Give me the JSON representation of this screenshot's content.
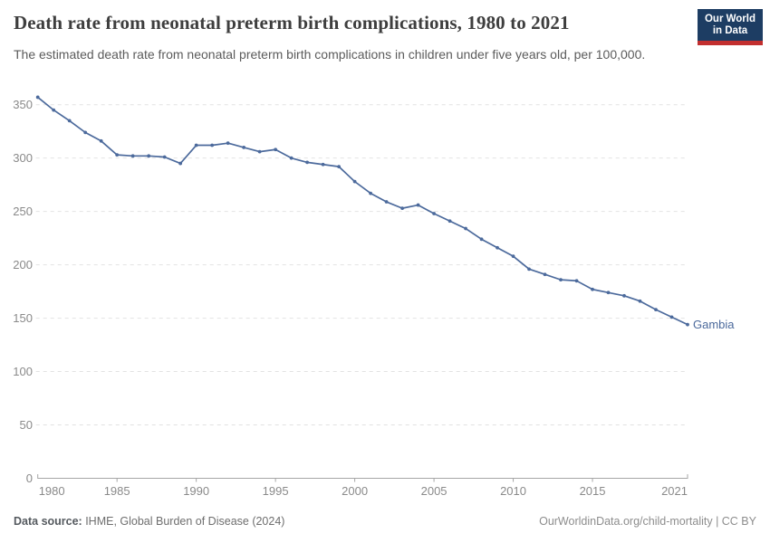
{
  "header": {
    "title": "Death rate from neonatal preterm birth complications, 1980 to 2021",
    "subtitle": "The estimated death rate from neonatal preterm birth complications in children under five years old, per 100,000.",
    "logo": {
      "line1": "Our World",
      "line2": "in Data"
    }
  },
  "chart_data": {
    "type": "line",
    "title": "Death rate from neonatal preterm birth complications, 1980 to 2021",
    "xlabel": "",
    "ylabel": "",
    "x_ticks": [
      1980,
      1985,
      1990,
      1995,
      2000,
      2005,
      2010,
      2015,
      2021
    ],
    "y_ticks": [
      0,
      50,
      100,
      150,
      200,
      250,
      300,
      350
    ],
    "ylim": [
      0,
      365
    ],
    "xlim": [
      1980,
      2021
    ],
    "grid": "horizontal-dashed",
    "legend_position": "end-of-line-label",
    "series": [
      {
        "name": "Gambia",
        "color": "#4c6a9c",
        "x": [
          1980,
          1981,
          1982,
          1983,
          1984,
          1985,
          1986,
          1987,
          1988,
          1989,
          1990,
          1991,
          1992,
          1993,
          1994,
          1995,
          1996,
          1997,
          1998,
          1999,
          2000,
          2001,
          2002,
          2003,
          2004,
          2005,
          2006,
          2007,
          2008,
          2009,
          2010,
          2011,
          2012,
          2013,
          2014,
          2015,
          2016,
          2017,
          2018,
          2019,
          2020,
          2021
        ],
        "values": [
          357,
          345,
          335,
          324,
          316,
          303,
          302,
          302,
          301,
          295,
          312,
          312,
          314,
          310,
          306,
          308,
          300,
          296,
          294,
          292,
          278,
          267,
          259,
          253,
          256,
          248,
          241,
          234,
          224,
          216,
          208,
          196,
          191,
          186,
          185,
          177,
          174,
          171,
          166,
          158,
          151,
          144
        ]
      }
    ]
  },
  "footer": {
    "source_label": "Data source:",
    "source_text": " IHME, Global Burden of Disease (2024)",
    "attribution": "OurWorldinData.org/child-mortality | CC BY"
  },
  "colors": {
    "accent_line": "#4c6a9c",
    "grid": "#e2e2e2",
    "axis": "#a6a6a6",
    "tick_label": "#8a8a8a",
    "logo_navy": "#1d3d63",
    "logo_red": "#c22f2f"
  }
}
